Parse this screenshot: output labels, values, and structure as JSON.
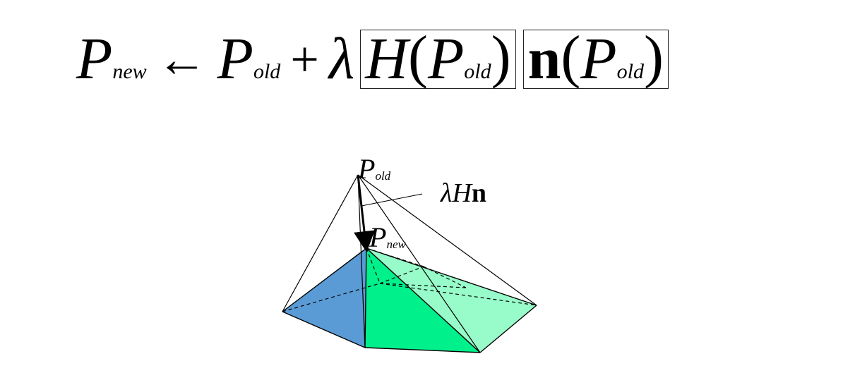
{
  "formula": {
    "p": "P",
    "sub_new": "new",
    "arrow": "←",
    "sub_old": "old",
    "plus": "+",
    "lambda": "λ",
    "h": "H",
    "lparen": "(",
    "rparen": ")",
    "n": "n"
  },
  "diagram": {
    "p_old_main": "P",
    "p_old_sub": "old",
    "p_new_main": "P",
    "p_new_sub": "new",
    "step_lambda": "λ",
    "step_h": "H",
    "step_n": "n"
  },
  "colors": {
    "blue_face": "#5a9bd5",
    "green_face": "#00f08c",
    "light_green_face": "#97fcc9",
    "edge": "#000000"
  }
}
